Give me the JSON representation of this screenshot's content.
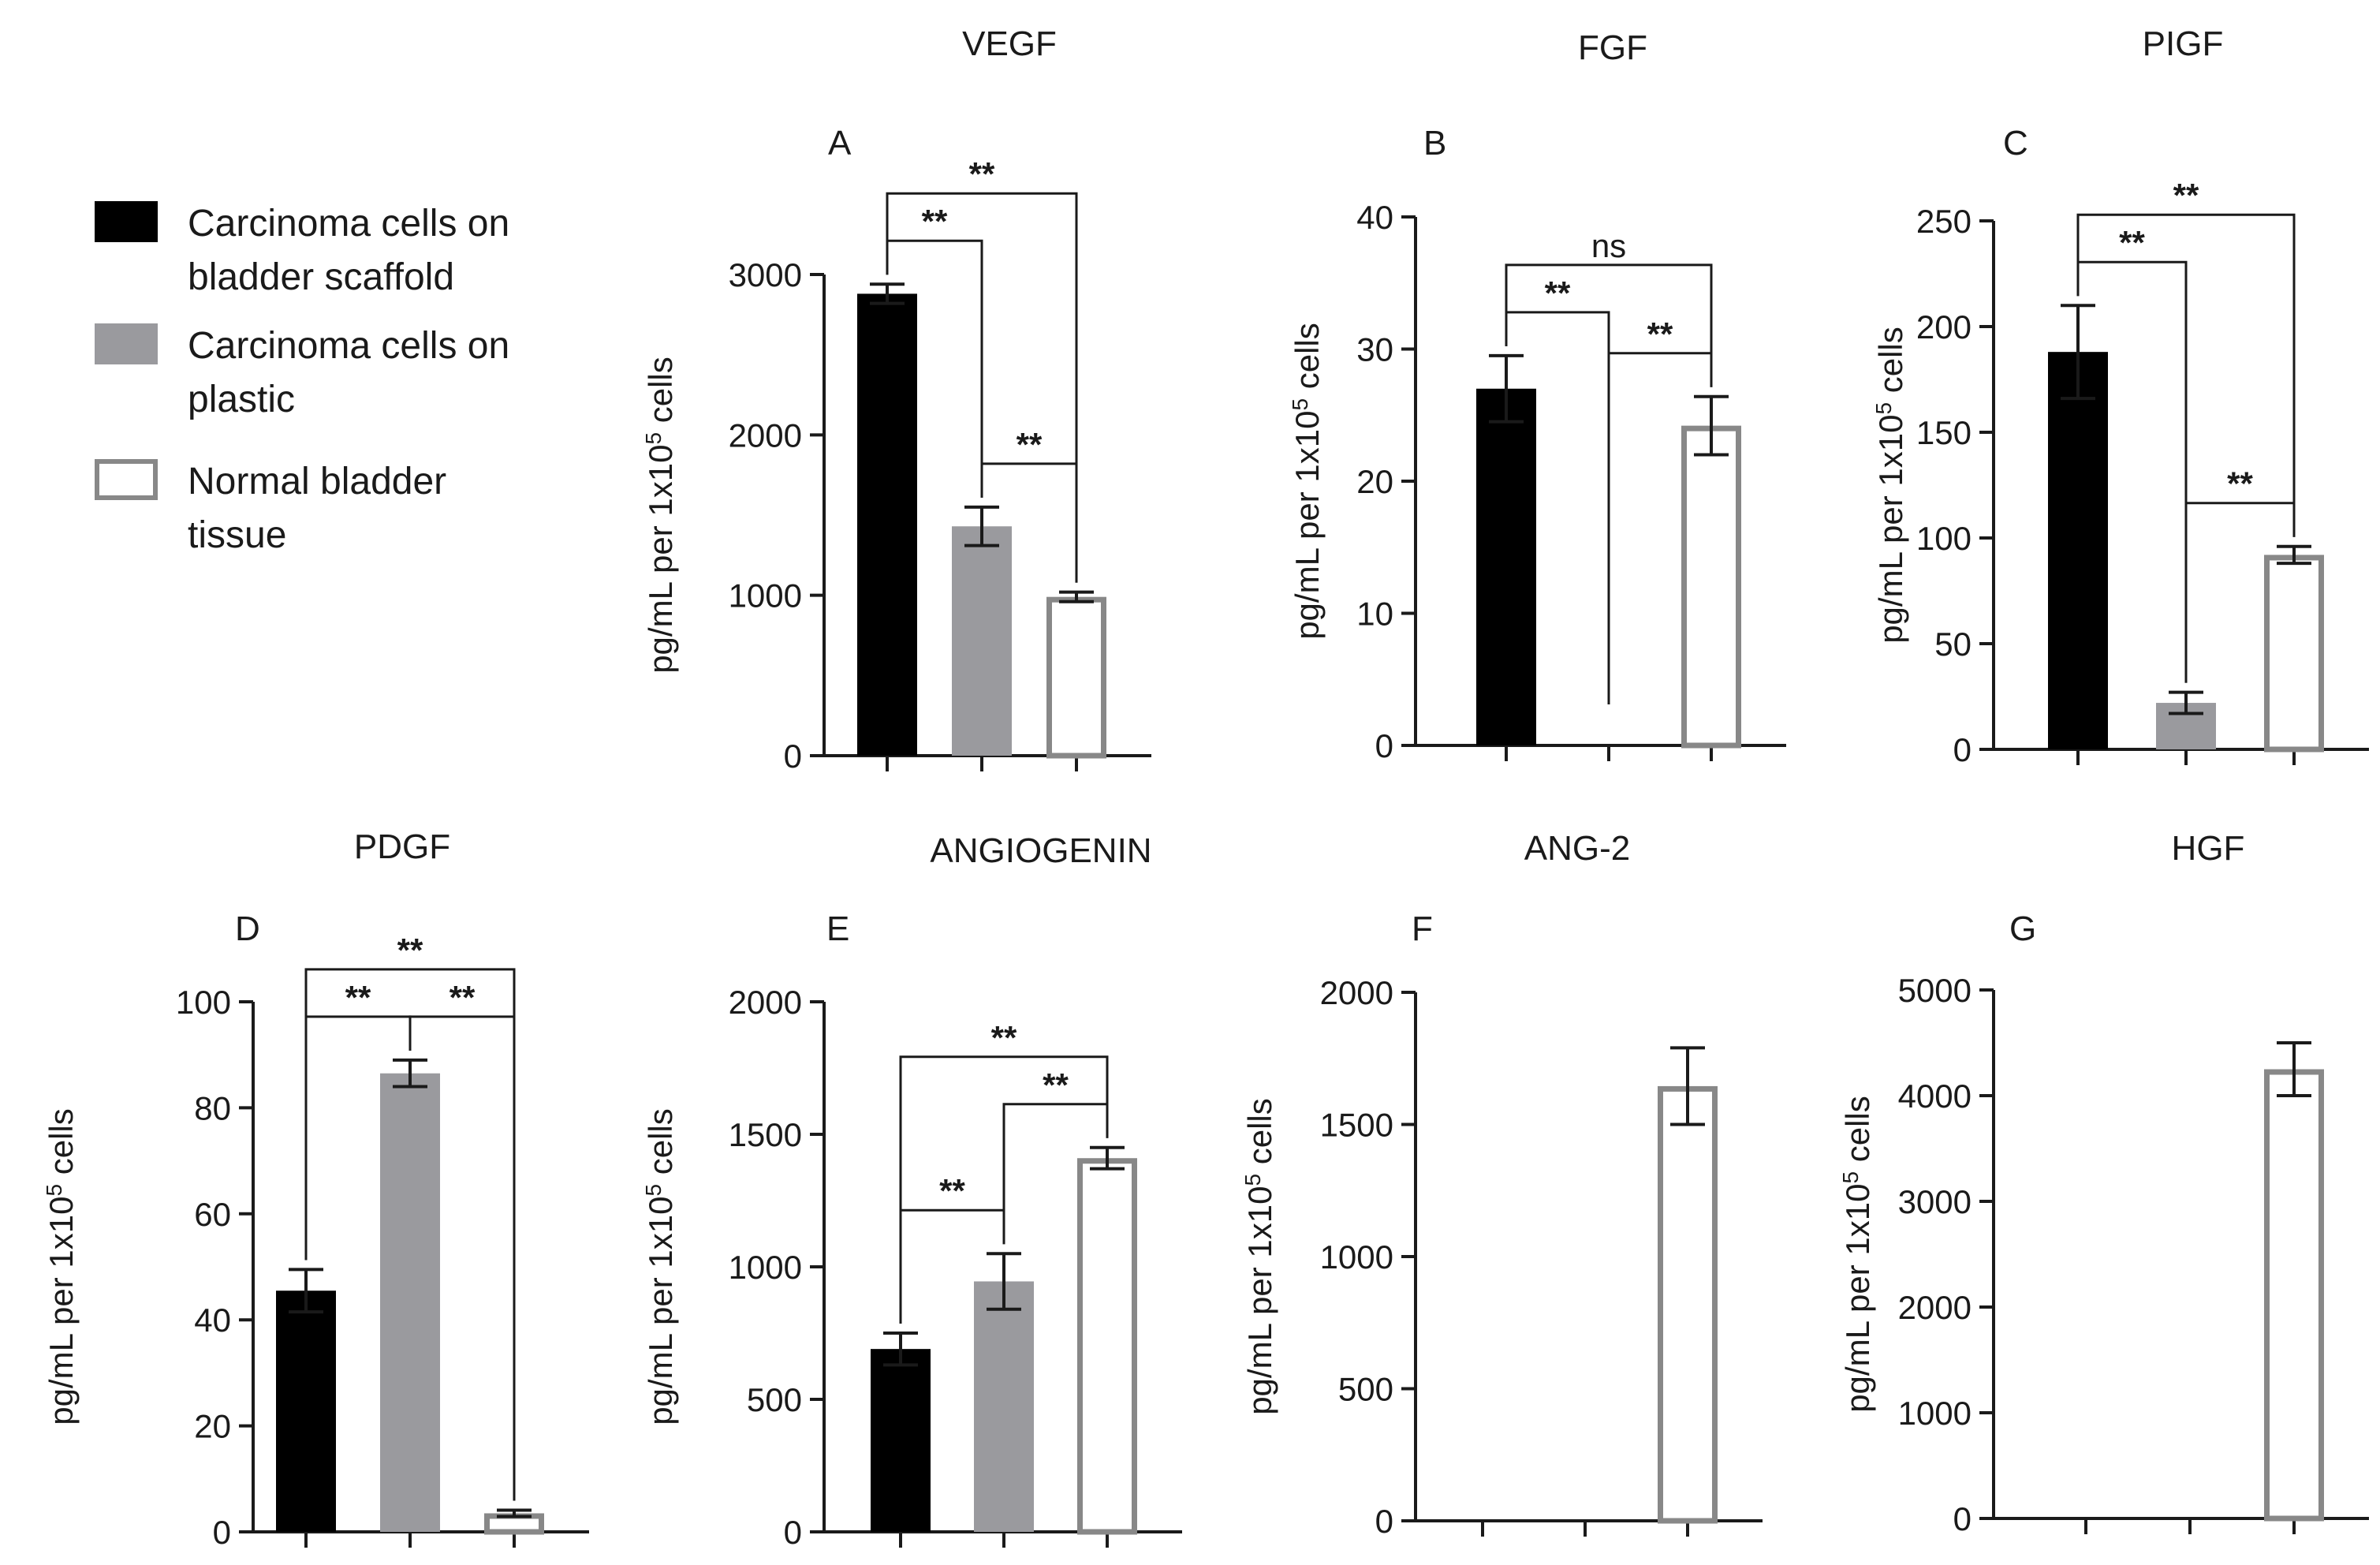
{
  "legend": {
    "items": [
      {
        "line1": "Carcinoma cells on",
        "line2": "bladder scaffold",
        "fill": "#000000",
        "stroke": "#000000"
      },
      {
        "line1": "Carcinoma cells on",
        "line2": "plastic",
        "fill": "#9a9a9e",
        "stroke": "#9a9a9e"
      },
      {
        "line1": "Normal bladder",
        "line2": "tissue",
        "fill": "#ffffff",
        "stroke": "#888888"
      }
    ]
  },
  "chart_data": [
    {
      "type": "bar",
      "title": "VEGF",
      "panel": "A",
      "ylabel": "pg/mL per 1x10",
      "ylabel_sup": "5",
      "ylabel_tail": " cells",
      "ylim": [
        0,
        3000
      ],
      "yticks": [
        0,
        1000,
        2000,
        3000
      ],
      "values": [
        2880,
        1430,
        990
      ],
      "errors": [
        60,
        120,
        30
      ],
      "comparisons": [
        {
          "a": 0,
          "b": 1,
          "label": "**"
        },
        {
          "a": 0,
          "b": 2,
          "label": "**"
        },
        {
          "a": 1,
          "b": 2,
          "label": "**"
        }
      ]
    },
    {
      "type": "bar",
      "title": "FGF",
      "panel": "B",
      "ylabel": "pg/mL per 1x10",
      "ylabel_sup": "5",
      "ylabel_tail": " cells",
      "ylim": [
        0,
        40
      ],
      "yticks": [
        0,
        10,
        20,
        30,
        40
      ],
      "values": [
        27,
        0,
        24.2
      ],
      "errors": [
        2.5,
        0,
        2.2
      ],
      "comparisons": [
        {
          "a": 0,
          "b": 1,
          "label": "**"
        },
        {
          "a": 0,
          "b": 2,
          "label": "ns"
        },
        {
          "a": 1,
          "b": 2,
          "label": "**"
        }
      ]
    },
    {
      "type": "bar",
      "title": "PIGF",
      "panel": "C",
      "ylabel": "pg/mL per 1x10",
      "ylabel_sup": "5",
      "ylabel_tail": " cells",
      "ylim": [
        0,
        250
      ],
      "yticks": [
        0,
        50,
        100,
        150,
        200,
        250
      ],
      "values": [
        188,
        22,
        92
      ],
      "errors": [
        22,
        5,
        4
      ],
      "comparisons": [
        {
          "a": 0,
          "b": 1,
          "label": "**"
        },
        {
          "a": 0,
          "b": 2,
          "label": "**"
        },
        {
          "a": 1,
          "b": 2,
          "label": "**"
        }
      ]
    },
    {
      "type": "bar",
      "title": "PDGF",
      "panel": "D",
      "ylabel": "pg/mL per 1x10",
      "ylabel_sup": "5",
      "ylabel_tail": " cells",
      "ylim": [
        0,
        100
      ],
      "yticks": [
        0,
        20,
        40,
        60,
        80,
        100
      ],
      "values": [
        45.5,
        86.5,
        3.5
      ],
      "errors": [
        4,
        2.5,
        0.6
      ],
      "comparisons": [
        {
          "a": 0,
          "b": 1,
          "label": "**"
        },
        {
          "a": 0,
          "b": 2,
          "label": "**"
        },
        {
          "a": 1,
          "b": 2,
          "label": "**"
        }
      ]
    },
    {
      "type": "bar",
      "title": "ANGIOGENIN",
      "panel": "E",
      "ylabel": "pg/mL per 1x10",
      "ylabel_sup": "5",
      "ylabel_tail": " cells",
      "ylim": [
        0,
        2000
      ],
      "yticks": [
        0,
        500,
        1000,
        1500,
        2000
      ],
      "values": [
        690,
        945,
        1410
      ],
      "errors": [
        60,
        105,
        40
      ],
      "comparisons": [
        {
          "a": 0,
          "b": 1,
          "label": "**"
        },
        {
          "a": 0,
          "b": 2,
          "label": "**"
        },
        {
          "a": 1,
          "b": 2,
          "label": "**"
        }
      ]
    },
    {
      "type": "bar",
      "title": "ANG-2",
      "panel": "F",
      "ylabel": "pg/mL per 1x10",
      "ylabel_sup": "5",
      "ylabel_tail": " cells",
      "ylim": [
        0,
        2000
      ],
      "yticks": [
        0,
        500,
        1000,
        1500,
        2000
      ],
      "values": [
        0,
        0,
        1645
      ],
      "errors": [
        0,
        0,
        145
      ],
      "comparisons": []
    },
    {
      "type": "bar",
      "title": "HGF",
      "panel": "G",
      "ylabel": "pg/mL per 1x10",
      "ylabel_sup": "5",
      "ylabel_tail": " cells",
      "ylim": [
        0,
        5000
      ],
      "yticks": [
        0,
        1000,
        2000,
        3000,
        4000,
        5000
      ],
      "values": [
        0,
        0,
        4250
      ],
      "errors": [
        0,
        0,
        250
      ],
      "comparisons": []
    }
  ]
}
